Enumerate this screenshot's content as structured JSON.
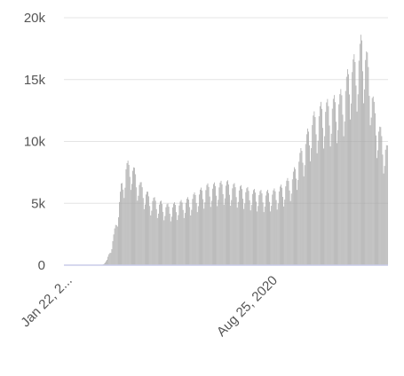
{
  "chart_data": {
    "type": "bar",
    "title": "",
    "xlabel": "",
    "ylabel": "",
    "ylim": [
      0,
      20000
    ],
    "y_ticks": [
      {
        "value": 0,
        "label": "0"
      },
      {
        "value": 5000,
        "label": "5k"
      },
      {
        "value": 10000,
        "label": "10k"
      },
      {
        "value": 15000,
        "label": "15k"
      },
      {
        "value": 20000,
        "label": "20k"
      }
    ],
    "x_ticks": [
      {
        "day": 0,
        "label": "Jan 22, 2..."
      },
      {
        "day": 216,
        "label": "Aug 25, 2020"
      }
    ],
    "x_start_label": "Jan 22, 2020",
    "grid": true,
    "legend": "none",
    "bar_color": "#a9a9a9",
    "anchor_values": [
      [
        0,
        0
      ],
      [
        40,
        0
      ],
      [
        45,
        400
      ],
      [
        50,
        1500
      ],
      [
        55,
        3500
      ],
      [
        60,
        6000
      ],
      [
        65,
        7600
      ],
      [
        70,
        7800
      ],
      [
        75,
        7000
      ],
      [
        80,
        6200
      ],
      [
        90,
        5200
      ],
      [
        100,
        4800
      ],
      [
        110,
        4500
      ],
      [
        120,
        4700
      ],
      [
        130,
        5000
      ],
      [
        140,
        5500
      ],
      [
        150,
        6000
      ],
      [
        160,
        6100
      ],
      [
        170,
        6300
      ],
      [
        180,
        6000
      ],
      [
        190,
        5800
      ],
      [
        200,
        5600
      ],
      [
        210,
        5500
      ],
      [
        220,
        5600
      ],
      [
        230,
        6000
      ],
      [
        240,
        6800
      ],
      [
        250,
        8800
      ],
      [
        255,
        9800
      ],
      [
        260,
        11000
      ],
      [
        270,
        12000
      ],
      [
        280,
        12300
      ],
      [
        290,
        12800
      ],
      [
        295,
        13500
      ],
      [
        300,
        15000
      ],
      [
        305,
        15500
      ],
      [
        310,
        16200
      ],
      [
        313,
        17300
      ],
      [
        318,
        16000
      ],
      [
        322,
        14500
      ],
      [
        326,
        12000
      ],
      [
        330,
        10800
      ],
      [
        336,
        9500
      ],
      [
        340,
        8800
      ]
    ],
    "weekly_pattern": [
      0.78,
      0.86,
      1.02,
      1.08,
      1.1,
      1.05,
      0.92
    ]
  }
}
